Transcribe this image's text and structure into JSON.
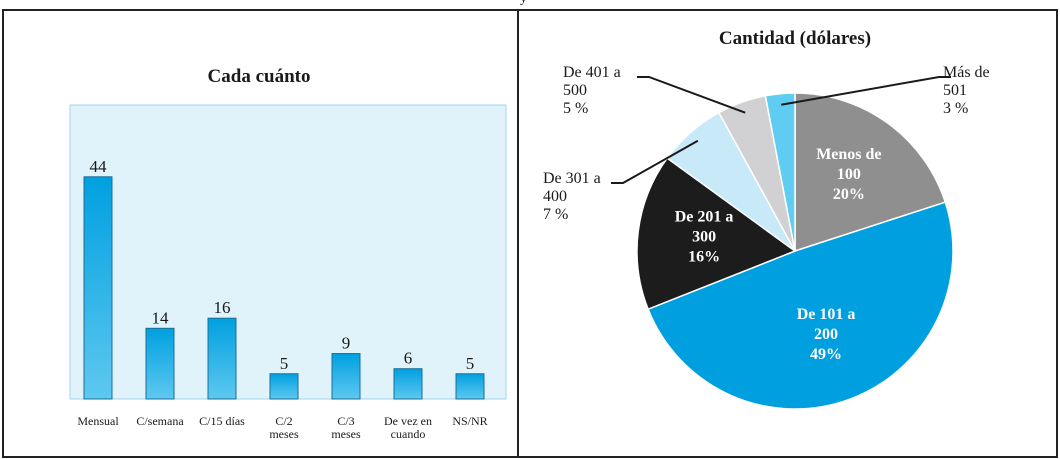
{
  "page_fragment": "y",
  "chart_data": [
    {
      "type": "bar",
      "title": "Cada cuánto",
      "xlabel": "",
      "ylabel": "",
      "categories": [
        "Mensual",
        "C/semana",
        "C/15 días",
        "C/2 meses",
        "C/3 meses",
        "De vez en cuando",
        "NS/NR"
      ],
      "category_lines": [
        [
          "Mensual"
        ],
        [
          "C/semana"
        ],
        [
          "C/15 días"
        ],
        [
          "C/2",
          "meses"
        ],
        [
          "C/3",
          "meses"
        ],
        [
          "De vez en",
          "cuando"
        ],
        [
          "NS/NR"
        ]
      ],
      "values": [
        44,
        14,
        16,
        5,
        9,
        6,
        5
      ],
      "value_labels": [
        "44",
        "14",
        "16",
        "5",
        "9",
        "6",
        "5"
      ],
      "ylim": [
        0,
        50
      ],
      "grid": false,
      "colors": {
        "bar_top": "#00a0e0",
        "bar_bottom": "#5ec8f0",
        "plot_bg": "#e0f3fb",
        "plot_border": "#9fd6ec"
      }
    },
    {
      "type": "pie",
      "title": "Cantidad (dólares)",
      "slices": [
        {
          "label_lines": [
            "Menos de",
            "100",
            "20%"
          ],
          "value": 20,
          "color": "#8f8f8f",
          "label_placement": "inside"
        },
        {
          "label_lines": [
            "De 101 a",
            "200",
            "49%"
          ],
          "value": 49,
          "color": "#00a0e0",
          "label_placement": "inside"
        },
        {
          "label_lines": [
            "De 201 a",
            "300",
            "16%"
          ],
          "value": 16,
          "color": "#1c1c1c",
          "label_placement": "inside"
        },
        {
          "label_lines": [
            "De 301 a",
            "400",
            "7 %"
          ],
          "value": 7,
          "color": "#c7e9f8",
          "label_placement": "outside"
        },
        {
          "label_lines": [
            "De 401 a",
            "500",
            "5 %"
          ],
          "value": 5,
          "color": "#d1d1d3",
          "label_placement": "outside"
        },
        {
          "label_lines": [
            "Más de",
            "501",
            "3 %"
          ],
          "value": 3,
          "color": "#5fcdf2",
          "label_placement": "outside"
        }
      ]
    }
  ]
}
